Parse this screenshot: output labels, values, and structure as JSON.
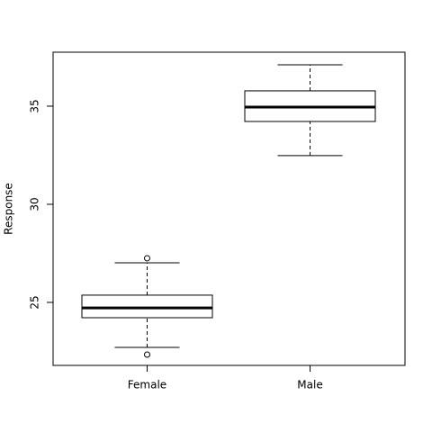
{
  "chart_data": {
    "type": "boxplot",
    "ylabel": "Response",
    "categories": [
      "Female",
      "Male"
    ],
    "boxes": [
      {
        "whislo": 22.71,
        "q1": 24.22,
        "med": 24.72,
        "q3": 25.37,
        "whishi": 27.02,
        "fliers": [
          27.25,
          22.34
        ]
      },
      {
        "whislo": 32.48,
        "q1": 34.22,
        "med": 34.95,
        "q3": 35.78,
        "whishi": 37.11,
        "fliers": []
      }
    ],
    "ylim": [
      21.79,
      37.75
    ],
    "yticks": [
      25,
      30,
      35
    ]
  }
}
